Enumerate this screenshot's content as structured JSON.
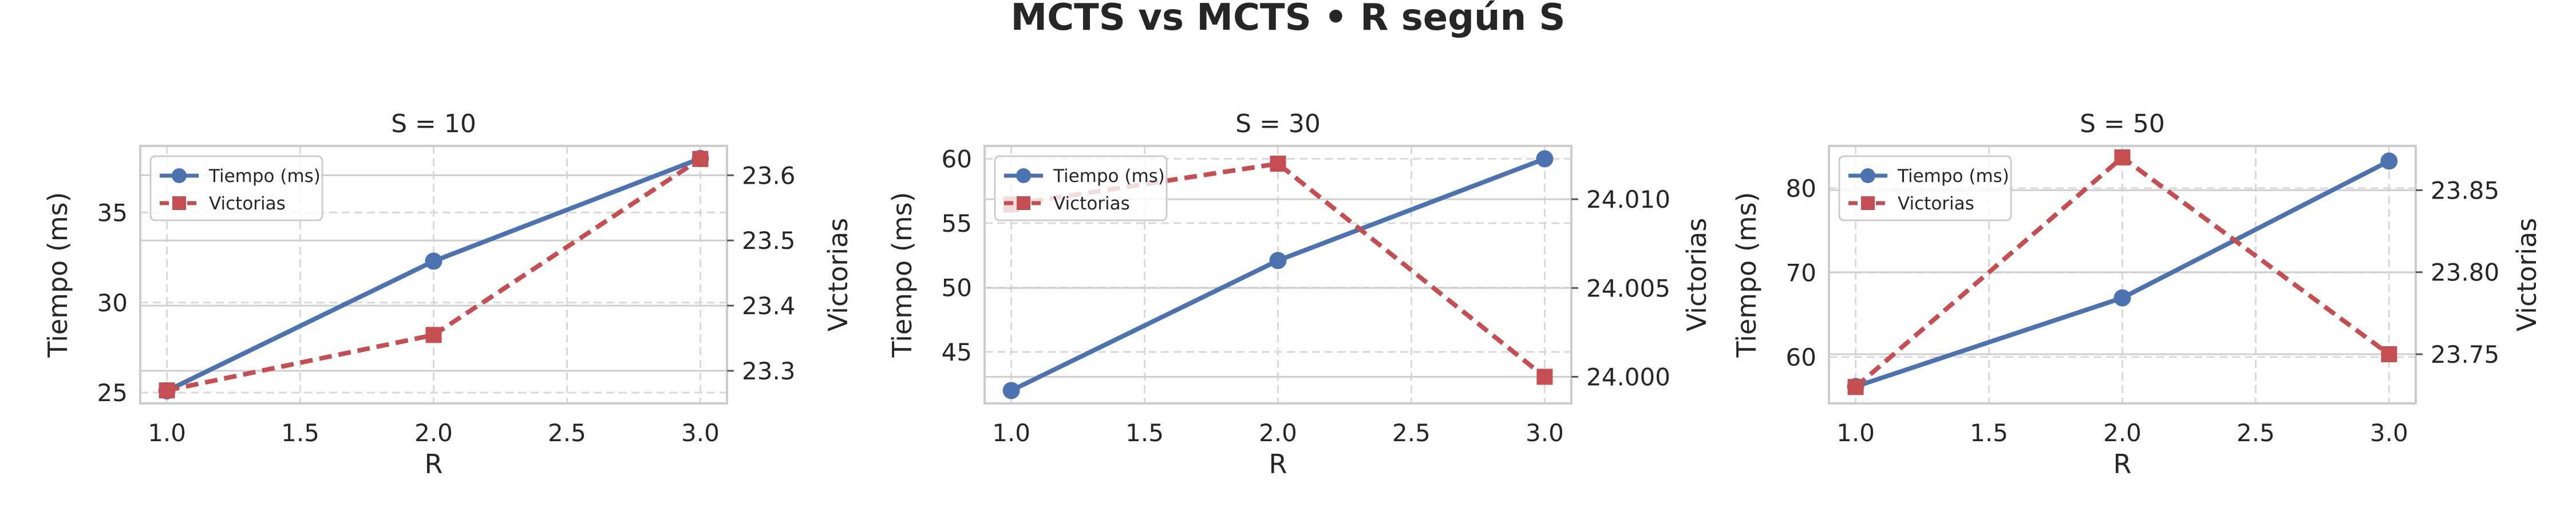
{
  "title": "MCTS vs MCTS • R según S",
  "colors": {
    "tiempo": "#4c72b0",
    "victorias": "#c44e52",
    "grid": "#d9d9d9",
    "spine": "#cccccc",
    "text": "#262626"
  },
  "chart_data": [
    {
      "type": "line",
      "title": "S = 10",
      "xlabel": "R",
      "ylabel": "Tiempo (ms)",
      "y2label": "Victorias",
      "x": [
        1.0,
        2.0,
        3.0
      ],
      "xlim": [
        0.9,
        3.1
      ],
      "xticks": [
        "1.0",
        "1.5",
        "2.0",
        "2.5",
        "3.0"
      ],
      "ylim": [
        24.4,
        38.7
      ],
      "yticks": [
        "25",
        "30",
        "35"
      ],
      "y2lim": [
        23.25,
        23.645
      ],
      "y2ticks": [
        "23.3",
        "23.4",
        "23.5",
        "23.6"
      ],
      "legend": "top-left",
      "grid": true,
      "series": [
        {
          "name": "Tiempo (ms)",
          "axis": "left",
          "values": [
            25.1,
            32.3,
            38.0
          ],
          "style": "solid",
          "marker": "circle"
        },
        {
          "name": "Victorias",
          "axis": "right",
          "values": [
            23.27,
            23.355,
            23.625
          ],
          "style": "dashed",
          "marker": "square"
        }
      ]
    },
    {
      "type": "line",
      "title": "S = 30",
      "xlabel": "R",
      "ylabel": "Tiempo (ms)",
      "y2label": "Victorias",
      "x": [
        1.0,
        2.0,
        3.0
      ],
      "xlim": [
        0.9,
        3.1
      ],
      "xticks": [
        "1.0",
        "1.5",
        "2.0",
        "2.5",
        "3.0"
      ],
      "ylim": [
        41.0,
        61.0
      ],
      "yticks": [
        "45",
        "50",
        "55",
        "60"
      ],
      "y2lim": [
        23.9985,
        24.013
      ],
      "y2ticks": [
        "24.000",
        "24.005",
        "24.010"
      ],
      "legend": "top-left",
      "grid": true,
      "series": [
        {
          "name": "Tiempo (ms)",
          "axis": "left",
          "values": [
            42.0,
            52.1,
            60.0
          ],
          "style": "solid",
          "marker": "circle"
        },
        {
          "name": "Victorias",
          "axis": "right",
          "values": [
            24.0097,
            24.012,
            24.0
          ],
          "style": "dashed",
          "marker": "square"
        }
      ]
    },
    {
      "type": "line",
      "title": "S = 50",
      "xlabel": "R",
      "ylabel": "Tiempo (ms)",
      "y2label": "Victorias",
      "x": [
        1.0,
        2.0,
        3.0
      ],
      "xlim": [
        0.9,
        3.1
      ],
      "xticks": [
        "1.0",
        "1.5",
        "2.0",
        "2.5",
        "3.0"
      ],
      "ylim": [
        54.5,
        85.0
      ],
      "yticks": [
        "60",
        "70",
        "80"
      ],
      "y2lim": [
        23.72,
        23.877
      ],
      "y2ticks": [
        "23.75",
        "23.80",
        "23.85"
      ],
      "legend": "top-left",
      "grid": true,
      "series": [
        {
          "name": "Tiempo (ms)",
          "axis": "left",
          "values": [
            56.5,
            67.0,
            83.2
          ],
          "style": "solid",
          "marker": "circle"
        },
        {
          "name": "Victorias",
          "axis": "right",
          "values": [
            23.73,
            23.87,
            23.75
          ],
          "style": "dashed",
          "marker": "square"
        }
      ]
    }
  ]
}
